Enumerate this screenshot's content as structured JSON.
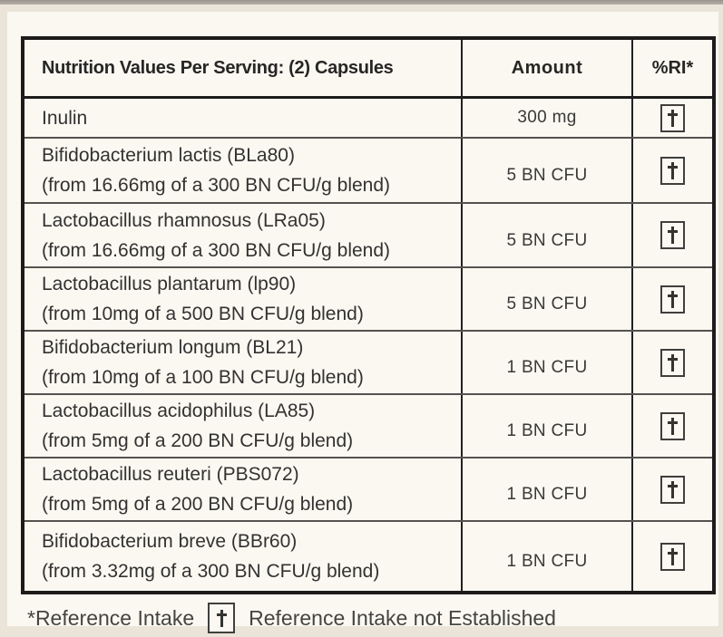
{
  "table": {
    "headers": {
      "nutrition": "Nutrition Values Per Serving: (2) Capsules",
      "amount": "Amount",
      "ri": "%RI*"
    },
    "rows": [
      {
        "name": "Inulin",
        "detail": "",
        "amount": "300 mg",
        "ri": "dagger"
      },
      {
        "name": "Bifidobacterium lactis (BLa80)",
        "detail": "(from 16.66mg of a 300 BN CFU/g blend)",
        "amount": "5 BN CFU",
        "ri": "dagger"
      },
      {
        "name": "Lactobacillus rhamnosus (LRa05)",
        "detail": "(from 16.66mg of a 300 BN CFU/g blend)",
        "amount": "5 BN CFU",
        "ri": "dagger"
      },
      {
        "name": "Lactobacillus plantarum (lp90)",
        "detail": "(from 10mg of a 500 BN CFU/g blend)",
        "amount": "5 BN CFU",
        "ri": "dagger"
      },
      {
        "name": "Bifidobacterium longum (BL21)",
        "detail": "(from 10mg of a 100 BN CFU/g blend)",
        "amount": "1 BN CFU",
        "ri": "dagger"
      },
      {
        "name": "Lactobacillus acidophilus (LA85)",
        "detail": "(from 5mg of a 200 BN CFU/g blend)",
        "amount": "1 BN CFU",
        "ri": "dagger"
      },
      {
        "name": "Lactobacillus reuteri (PBS072)",
        "detail": "(from 5mg of a 200 BN CFU/g blend)",
        "amount": "1 BN CFU",
        "ri": "dagger"
      },
      {
        "name": "Bifidobacterium breve (BBr60)",
        "detail": "(from 3.32mg of a 300 BN CFU/g blend)",
        "amount": "1 BN CFU",
        "ri": "dagger"
      }
    ]
  },
  "footnote": {
    "reference_intake": "*Reference Intake",
    "not_established": "Reference Intake not Established"
  },
  "icons": {
    "ri_symbol": "dagger-icon"
  },
  "colors": {
    "label_background": "#fbf8f2",
    "photo_background": "#ebe5d9",
    "table_border": "#1d1c1a",
    "row_separator": "#55534f",
    "text": "#333230",
    "top_strip": "#a49f98"
  }
}
